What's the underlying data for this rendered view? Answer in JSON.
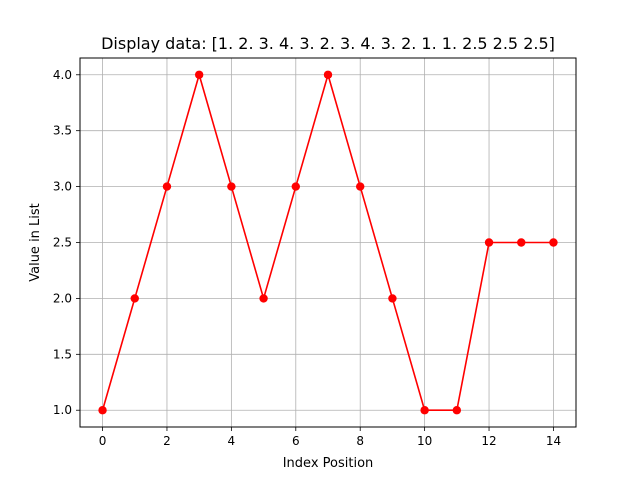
{
  "chart_data": {
    "type": "line",
    "title": "Display data: [1.  2.  3.  4.  3.  2.  3.  4.  3.  2.  1.  1.  2.5 2.5 2.5]",
    "xlabel": "Index Position",
    "ylabel": "Value in List",
    "x": [
      0,
      1,
      2,
      3,
      4,
      5,
      6,
      7,
      8,
      9,
      10,
      11,
      12,
      13,
      14
    ],
    "series": [
      {
        "values": [
          1,
          2,
          3,
          4,
          3,
          2,
          3,
          4,
          3,
          2,
          1,
          1,
          2.5,
          2.5,
          2.5
        ],
        "color": "#ff0000",
        "marker": "circle"
      }
    ],
    "xlim": [
      -0.7,
      14.7
    ],
    "ylim": [
      0.85,
      4.15
    ],
    "xticks": [
      0,
      2,
      4,
      6,
      8,
      10,
      12,
      14
    ],
    "xtick_labels": [
      "0",
      "2",
      "4",
      "6",
      "8",
      "10",
      "12",
      "14"
    ],
    "yticks": [
      1.0,
      1.5,
      2.0,
      2.5,
      3.0,
      3.5,
      4.0
    ],
    "ytick_labels": [
      "1.0",
      "1.5",
      "2.0",
      "2.5",
      "3.0",
      "3.5",
      "4.0"
    ],
    "grid": true,
    "grid_color": "#b0b0b0",
    "legend": "none"
  }
}
